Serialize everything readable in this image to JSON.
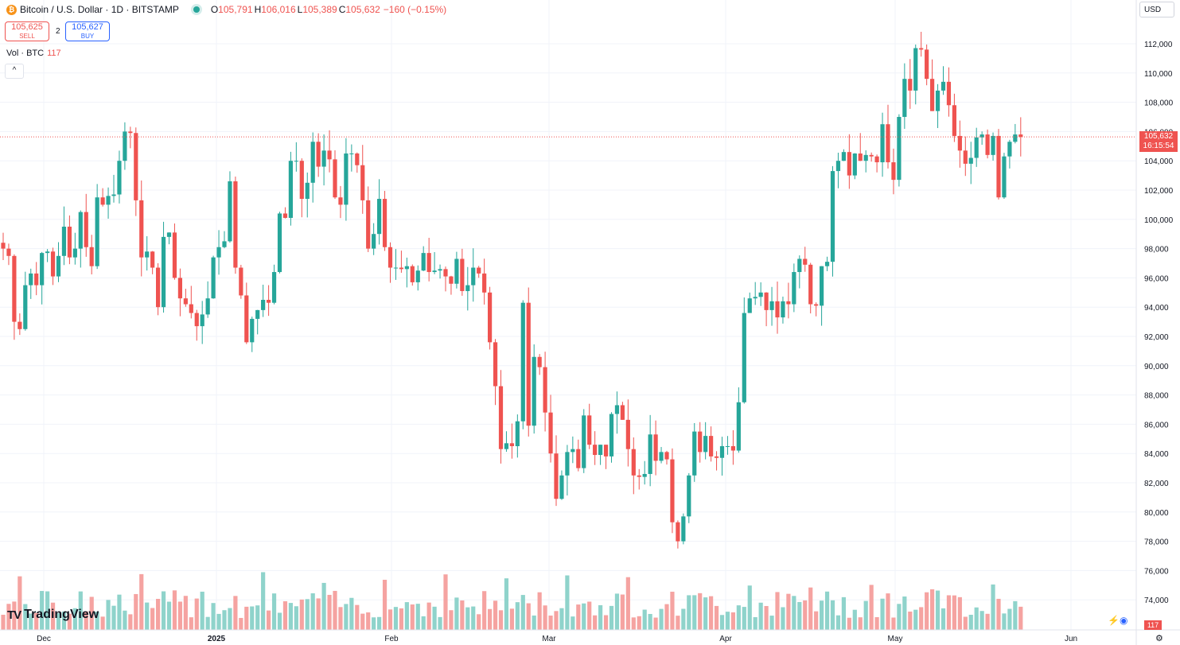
{
  "header": {
    "symbol": "Bitcoin / U.S. Dollar · 1D · BITSTAMP",
    "ohlc": [
      {
        "label": "O",
        "value": "105,791"
      },
      {
        "label": "H",
        "value": "106,016"
      },
      {
        "label": "L",
        "value": "105,389"
      },
      {
        "label": "C",
        "value": "105,632"
      }
    ],
    "change": "−160 (−0.15%)"
  },
  "trade": {
    "sell_price": "105,625",
    "sell_label": "SELL",
    "spread": "2",
    "buy_price": "105,627",
    "buy_label": "BUY"
  },
  "volume_legend": {
    "label": "Vol · BTC",
    "value": "117"
  },
  "controls": {
    "collapse": "^",
    "currency": "USD"
  },
  "price_axis": {
    "labels": [
      "112,000",
      "110,000",
      "108,000",
      "106,000",
      "104,000",
      "102,000",
      "100,000",
      "98,000",
      "96,000",
      "94,000",
      "92,000",
      "90,000",
      "88,000",
      "86,000",
      "84,000",
      "82,000",
      "80,000",
      "78,000",
      "76,000",
      "74,000"
    ],
    "last_price": "105,632",
    "countdown": "16:15:54",
    "volume_tag": "117"
  },
  "time_axis": {
    "labels": [
      "Dec",
      "2025",
      "Feb",
      "Mar",
      "Apr",
      "May",
      "Jun"
    ]
  },
  "logo": {
    "text": "TradingView",
    "mark": "TV"
  },
  "colors": {
    "up": "#26a69a",
    "down": "#ef5350",
    "up_vol": "#8fd3cb",
    "down_vol": "#f5a3a1",
    "grid": "#f0f3fa"
  },
  "chart_data": {
    "type": "candlestick",
    "series": "BTC/USD daily",
    "ylim": [
      73000,
      113000
    ],
    "closes": [
      98000,
      97500,
      93000,
      92500,
      95500,
      96300,
      95500,
      97700,
      97800,
      96100,
      97500,
      99500,
      97400,
      98000,
      100500,
      98100,
      96800,
      101500,
      101000,
      101600,
      101700,
      104000,
      106000,
      105900,
      101300,
      97400,
      97800,
      96700,
      94000,
      98800,
      99100,
      96000,
      94600,
      94200,
      93600,
      92700,
      93500,
      94600,
      97400,
      98100,
      98500,
      102600,
      96700,
      94800,
      91600,
      93200,
      93800,
      94500,
      94300,
      96400,
      100400,
      100100,
      104000,
      104000,
      101400,
      102500,
      105300,
      103600,
      104700,
      104100,
      101500,
      101000,
      104500,
      104500,
      103700,
      101300,
      98000,
      99000,
      101400,
      98100,
      96700,
      96700,
      96600,
      96800,
      95700,
      96500,
      97700,
      96400,
      96500,
      96600,
      96100,
      95600,
      97300,
      95100,
      95500,
      96700,
      96300,
      95000,
      91600,
      88600,
      84300,
      84700,
      84500,
      86200,
      94300,
      85900,
      90600,
      89900,
      86800,
      84000,
      80900,
      82500,
      84100,
      84300,
      83000,
      86600,
      84600,
      83900,
      84600,
      83800,
      86700,
      87300,
      86300,
      84300,
      82500,
      82400,
      82600,
      85300,
      83500,
      84100,
      83600,
      79300,
      78000,
      79700,
      82500,
      85500,
      84100,
      85200,
      83800,
      83700,
      84500,
      84500,
      84200,
      87500,
      93600,
      94600,
      94700,
      95000,
      93800,
      94400,
      93300,
      94400,
      94200,
      96400,
      97300,
      96900,
      94200,
      94100,
      96800,
      97100,
      103300,
      104000,
      104600,
      103000,
      104500,
      104000,
      104400,
      104300,
      103900,
      106500,
      103900,
      102700,
      107000,
      109600,
      108800,
      111700,
      111600,
      109600,
      107400,
      108800,
      109400,
      107800,
      105700,
      104700,
      103800,
      104200,
      105600,
      105800,
      104400,
      105700,
      101500,
      104300,
      105300,
      105800,
      105632
    ]
  }
}
